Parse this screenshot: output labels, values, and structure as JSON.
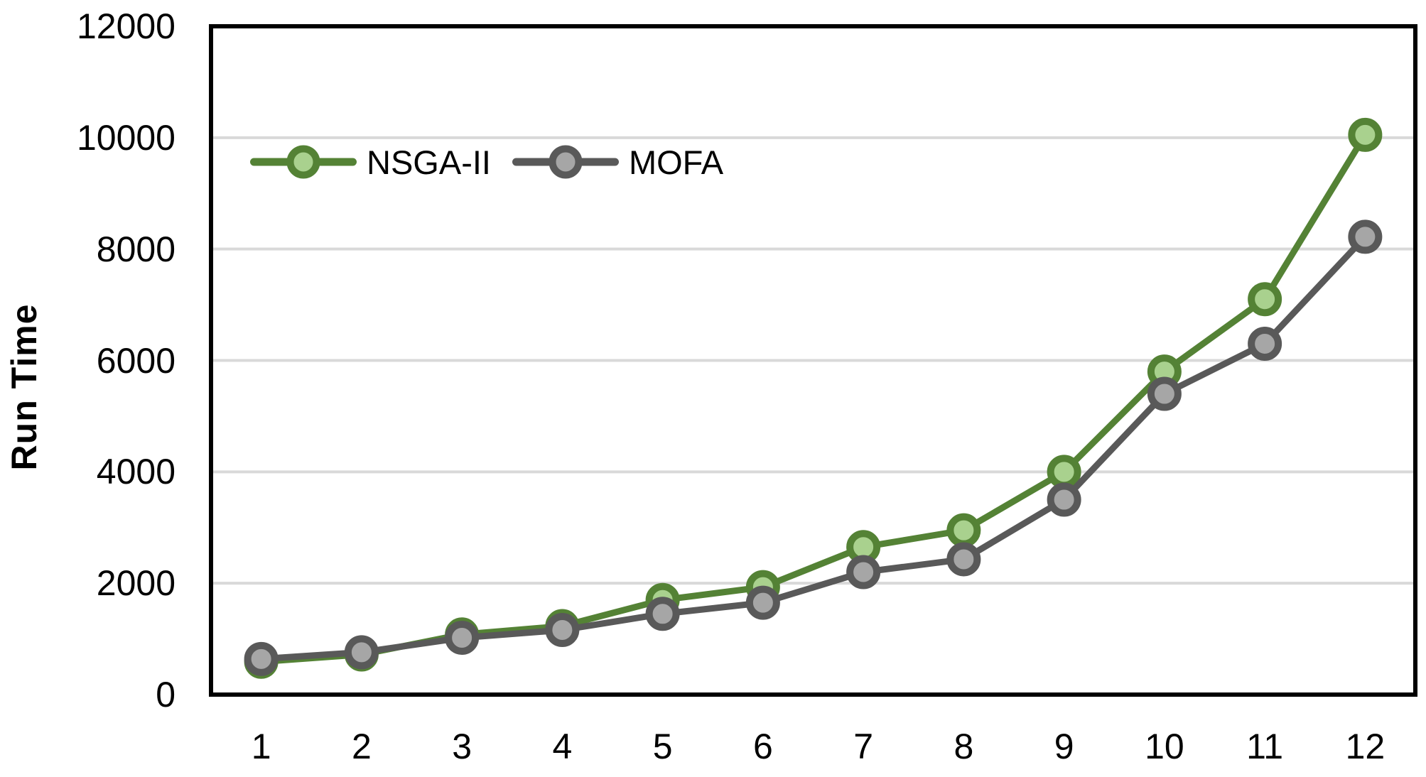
{
  "chart_data": {
    "type": "line",
    "title": "",
    "xlabel": "",
    "ylabel": "Run Time",
    "x": [
      1,
      2,
      3,
      4,
      5,
      6,
      7,
      8,
      9,
      10,
      11,
      12
    ],
    "series": [
      {
        "name": "NSGA-II",
        "color": "#548235",
        "marker_fill": "#A9D18E",
        "values": [
          590,
          720,
          1080,
          1230,
          1700,
          1930,
          2650,
          2950,
          4000,
          5800,
          7100,
          10050
        ]
      },
      {
        "name": "MOFA",
        "color": "#595959",
        "marker_fill": "#A6A6A6",
        "values": [
          640,
          760,
          1020,
          1160,
          1450,
          1650,
          2200,
          2430,
          3500,
          5400,
          6300,
          8220
        ]
      }
    ],
    "ylim": [
      0,
      12000
    ],
    "y_ticks": [
      0,
      2000,
      4000,
      6000,
      8000,
      10000,
      12000
    ],
    "grid": "horizontal",
    "legend_position": "top-left-inside"
  },
  "colors": {
    "background": "#FFFFFF",
    "axis_border": "#000000",
    "gridline": "#D9D9D9",
    "text": "#000000"
  }
}
